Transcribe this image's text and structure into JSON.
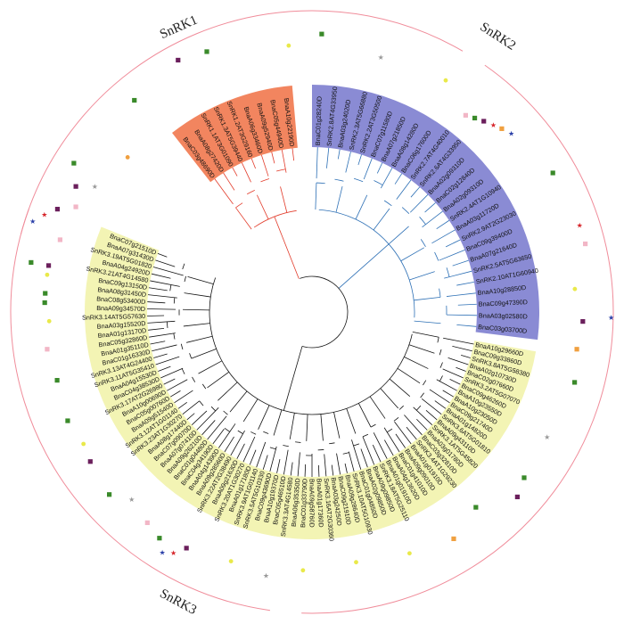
{
  "groups": [
    {
      "title": "SnRK1",
      "color": "#f2855f"
    },
    {
      "title": "SnRK2",
      "color": "#8a8bd4"
    },
    {
      "title": "SnRK3",
      "color": "#f3f4b4"
    }
  ],
  "ring_color": "#f08c9a",
  "branch_colors": {
    "SnRK1": "#e23b2a",
    "SnRK2": "#2c6fb5",
    "SnRK3": "#111111"
  },
  "marker_colors": {
    "green": "#3a8a2a",
    "purple": "#6b1f5c",
    "pink": "#f2b6c6",
    "orange": "#f0a040",
    "yellow": "#e9e94a",
    "red": "#d6252a",
    "blue": "#2a3fa8",
    "grey": "#999999"
  },
  "leaves": {
    "SnRK1": [
      "BnaC03g48690D",
      "BnaA08g27420D",
      "SnRK1.1AT3G01090",
      "SnRK1.3AT5G39440",
      "SnRK1.2AT3G29160",
      "BnaA06g33460D",
      "BnaA09g52940D",
      "BnaC05g44940D",
      "BnaA10g22190D"
    ],
    "SnRK2": [
      "BnaC01g28240D",
      "SnRK2.8AT4G33950",
      "BnaA03g24020D",
      "SnRK2.3AT5G66880",
      "SnRK2.2AT3G50500",
      "BnaC07g11580D",
      "BnaA07g21850D",
      "BnaA08g14280D",
      "BnaC06g17600D",
      "SnRK2.7AT4G40010",
      "SnRK2.6AT4G33950",
      "BnaA02g09310D",
      "BnaC02g12840D",
      "BnaA02g09310D",
      "SnRK2.4AT1G10940",
      "BnaA03g11720D",
      "SnRK2.9AT2G23030",
      "BnaC09g39400D",
      "BnaA07g21640D",
      "SnRK2.5AT5G63650",
      "SnRK2.10AT1G60940",
      "BnaA10g28850D",
      "BnaC09g47390D",
      "BnaA03g02580D",
      "BnaC03g03700D"
    ],
    "SnRK3": [
      "BnaA10g29660D",
      "BnaC09g33860D",
      "SnRK3.8AT5G58380",
      "BnaA02g10730D",
      "BnaC02g07660D",
      "SnRK3.2AT5G07070",
      "BnaC09g46260D",
      "BnaA10g23550D",
      "BnaA10g23050D",
      "BnaC09g21740D",
      "BnaA01g14820D",
      "SnRK3.6AT5G01810",
      "BnaA09g43110D",
      "SnRK3.1AT5G45820",
      "BnaA03g01780D",
      "BnaC03g32810D",
      "SnRK3.4AT1G29230",
      "BnaA01g01910D",
      "BnaA09g09010D",
      "BnaC01g41010D",
      "BnaA04g13620D",
      "BnaA01g01910D",
      "SnRK3.18AT5G25110",
      "BnaA09g09850D",
      "BnaA02g09850D",
      "BnaC01g04850D",
      "SnRK3.10AT5G10930",
      "BnaA09g28640D",
      "BnaC09g21910D",
      "BnaA03g24250D",
      "SnRK3.16AT2G30360",
      "BnaA01g17360D",
      "BnaA09g58760D",
      "BnaC01g33790D",
      "BnaA06g35350D",
      "SnRK3.3AT4G14580",
      "BnaC05g46510D",
      "BnaA10g19370D",
      "BnaC09g43690D",
      "SnRK3.5AT5G10330",
      "SnRK3.9AT1G01140",
      "BnaA01g17180D",
      "SnRK3.20AT1G30270",
      "BnaA09g21630D",
      "SnRK3.22AT2G38490",
      "BnaA09g28560D",
      "BnaA04g14390D",
      "BnaC04g34190D",
      "BnaC01g04480D",
      "BnaA09g26210D",
      "BnaA07g07410D",
      "BnaC07g09070D",
      "BnaA08g17440D",
      "SnRK3.23AT1G30270",
      "SnRK3.12AT1G01140",
      "BnaA09g51540D",
      "BnaC05g00760D",
      "BnaA10g00690D",
      "SnRK3.17AT2G26980",
      "BnaC04g38530D",
      "BnaA04g15530D",
      "SnRK3.11AT5G35410",
      "SnRK3.13AT4G24400",
      "BnaC01g16330D",
      "BnaA01g35110D",
      "BnaC05g32860D",
      "BnaA01g13170D",
      "BnaA03g15520D",
      "SnRK3.14AT5G57630",
      "BnaA09g34570D",
      "BnaC08g53400D",
      "BnaA08g31450D",
      "BnaC09g13150D",
      "SnRK3.21AT4G14580",
      "BnaA04g24920D",
      "SnRK3.19AT5G01820",
      "BnaA07g31430D",
      "BnaC07g21510D"
    ]
  }
}
